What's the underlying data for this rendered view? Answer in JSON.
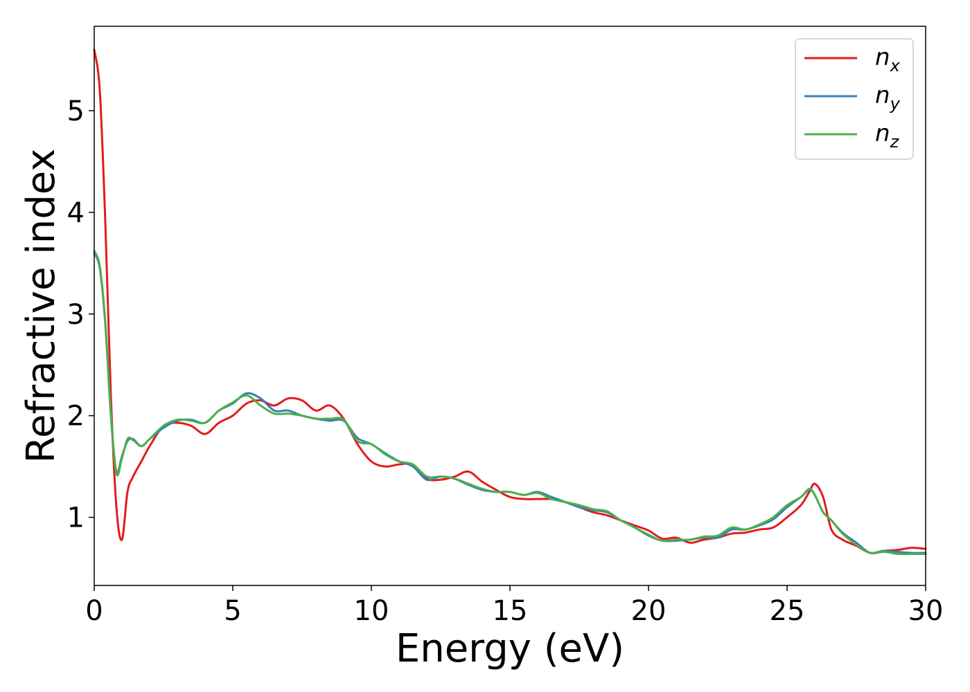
{
  "chart_data": {
    "type": "line",
    "title": "",
    "xlabel": "Energy (eV)",
    "ylabel": "Refractive index",
    "xlim": [
      0,
      30
    ],
    "ylim": [
      0.33,
      5.83
    ],
    "xticks": [
      0,
      5,
      10,
      15,
      20,
      25,
      30
    ],
    "yticks": [
      1,
      2,
      3,
      4,
      5
    ],
    "grid": false,
    "legend_position": "top-right",
    "x": [
      0,
      0.2,
      0.4,
      0.6,
      0.8,
      1.0,
      1.2,
      1.4,
      1.7,
      2.0,
      2.5,
      3.0,
      3.5,
      4.0,
      4.5,
      5.0,
      5.5,
      6.0,
      6.5,
      7.0,
      7.5,
      8.0,
      8.5,
      9.0,
      9.5,
      10.0,
      10.5,
      11.0,
      11.5,
      12.0,
      12.5,
      13.0,
      13.5,
      14.0,
      14.5,
      15.0,
      15.5,
      16.0,
      16.5,
      17.0,
      17.5,
      18.0,
      18.5,
      19.0,
      19.5,
      20.0,
      20.5,
      21.0,
      21.5,
      22.0,
      22.5,
      23.0,
      23.5,
      24.0,
      24.5,
      25.0,
      25.5,
      25.8,
      26.0,
      26.3,
      26.6,
      27.0,
      27.5,
      28.0,
      28.5,
      29.0,
      29.5,
      30.0
    ],
    "series": [
      {
        "name": "n_x",
        "label_main": "n",
        "label_sub": "x",
        "color": "#e41a1c",
        "values": [
          5.6,
          5.2,
          3.9,
          2.2,
          1.1,
          0.78,
          1.25,
          1.4,
          1.55,
          1.7,
          1.9,
          1.93,
          1.9,
          1.82,
          1.93,
          2.0,
          2.12,
          2.15,
          2.1,
          2.17,
          2.15,
          2.05,
          2.1,
          1.97,
          1.72,
          1.55,
          1.5,
          1.52,
          1.52,
          1.38,
          1.37,
          1.4,
          1.45,
          1.35,
          1.27,
          1.2,
          1.18,
          1.18,
          1.18,
          1.15,
          1.1,
          1.05,
          1.02,
          0.97,
          0.92,
          0.87,
          0.79,
          0.8,
          0.75,
          0.78,
          0.8,
          0.84,
          0.85,
          0.88,
          0.9,
          1.0,
          1.12,
          1.25,
          1.33,
          1.2,
          0.88,
          0.78,
          0.72,
          0.65,
          0.67,
          0.68,
          0.7,
          0.69
        ]
      },
      {
        "name": "n_y",
        "label_main": "n",
        "label_sub": "y",
        "color": "#377eb8",
        "values": [
          3.6,
          3.45,
          2.9,
          2.0,
          1.45,
          1.6,
          1.75,
          1.77,
          1.7,
          1.77,
          1.88,
          1.95,
          1.96,
          1.93,
          2.05,
          2.12,
          2.22,
          2.17,
          2.05,
          2.05,
          2.0,
          1.97,
          1.95,
          1.95,
          1.78,
          1.72,
          1.63,
          1.55,
          1.5,
          1.37,
          1.4,
          1.38,
          1.32,
          1.27,
          1.25,
          1.25,
          1.22,
          1.25,
          1.2,
          1.15,
          1.1,
          1.07,
          1.05,
          0.97,
          0.9,
          0.82,
          0.77,
          0.77,
          0.78,
          0.8,
          0.8,
          0.88,
          0.88,
          0.92,
          0.98,
          1.1,
          1.2,
          1.27,
          1.22,
          1.05,
          0.97,
          0.85,
          0.75,
          0.65,
          0.67,
          0.66,
          0.65,
          0.65
        ]
      },
      {
        "name": "n_z",
        "label_main": "n",
        "label_sub": "z",
        "color": "#4daf4a",
        "values": [
          3.62,
          3.47,
          2.92,
          2.02,
          1.43,
          1.58,
          1.77,
          1.76,
          1.7,
          1.77,
          1.9,
          1.96,
          1.95,
          1.93,
          2.05,
          2.13,
          2.2,
          2.1,
          2.02,
          2.02,
          2.0,
          1.97,
          1.97,
          1.96,
          1.75,
          1.72,
          1.62,
          1.55,
          1.52,
          1.4,
          1.4,
          1.38,
          1.33,
          1.28,
          1.25,
          1.25,
          1.22,
          1.24,
          1.18,
          1.15,
          1.12,
          1.08,
          1.06,
          0.97,
          0.9,
          0.83,
          0.77,
          0.78,
          0.78,
          0.81,
          0.82,
          0.9,
          0.88,
          0.93,
          1.0,
          1.12,
          1.2,
          1.28,
          1.22,
          1.05,
          0.97,
          0.84,
          0.73,
          0.65,
          0.66,
          0.64,
          0.64,
          0.64
        ]
      }
    ]
  }
}
